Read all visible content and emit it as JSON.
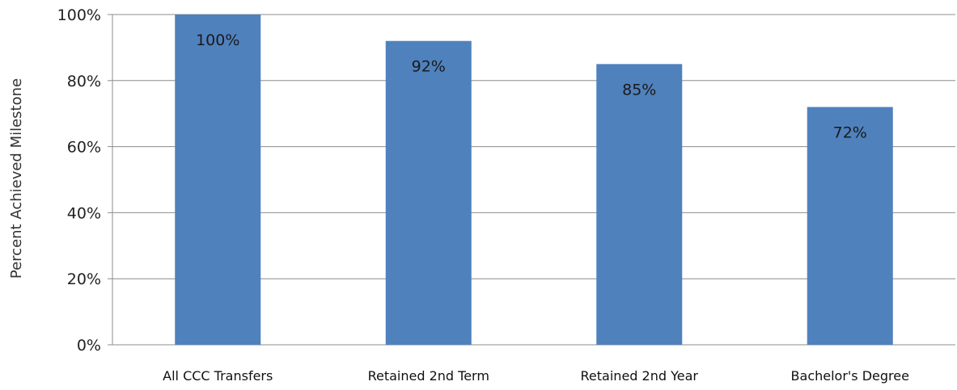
{
  "chart_data": {
    "type": "bar",
    "categories": [
      "All CCC Transfers",
      "Retained 2nd Term",
      "Retained 2nd Year",
      "Bachelor's Degree"
    ],
    "values": [
      100,
      92,
      85,
      72
    ],
    "data_labels": [
      "100%",
      "92%",
      "85%",
      "72%"
    ],
    "ylabel": "Percent Achieved Milestone",
    "ylim": [
      0,
      100
    ],
    "yticks": [
      0,
      20,
      40,
      60,
      80,
      100
    ],
    "ytick_labels": [
      "0%",
      "20%",
      "40%",
      "60%",
      "80%",
      "100%"
    ],
    "grid": true,
    "legend": "none",
    "bar_color": "#4f81bd",
    "grid_color": "#8c8c8c"
  }
}
